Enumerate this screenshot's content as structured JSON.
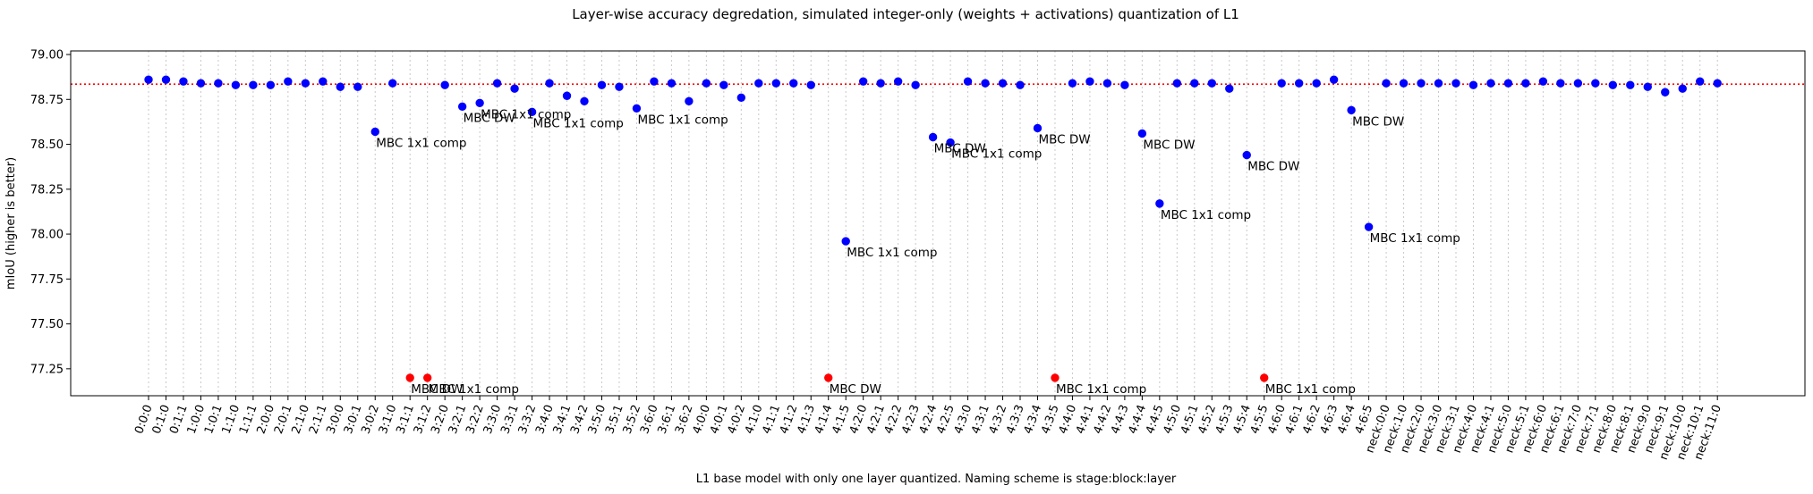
{
  "chart_data": {
    "type": "scatter",
    "title": "Layer-wise accuracy degredation, simulated integer-only (weights + activations) quantization of L1",
    "xlabel": "L1 base model with only one layer quantized. Naming scheme is stage:block:layer",
    "ylabel": "mIoU (higher is better)",
    "ylim": [
      77.1,
      79.02
    ],
    "yticks": [
      "77.25",
      "77.50",
      "77.75",
      "78.00",
      "78.25",
      "78.50",
      "78.75",
      "79.00"
    ],
    "reference_line": {
      "value": 78.835,
      "style": "dotted",
      "color": "#ff0000"
    },
    "grid": "vertical dotted at each category",
    "categories": [
      "0:0:0",
      "0:1:0",
      "0:1:1",
      "1:0:0",
      "1:0:1",
      "1:1:0",
      "1:1:1",
      "2:0:0",
      "2:0:1",
      "2:1:0",
      "2:1:1",
      "3:0:0",
      "3:0:1",
      "3:0:2",
      "3:1:0",
      "3:1:1",
      "3:1:2",
      "3:2:0",
      "3:2:1",
      "3:2:2",
      "3:3:0",
      "3:3:1",
      "3:3:2",
      "3:4:0",
      "3:4:1",
      "3:4:2",
      "3:5:0",
      "3:5:1",
      "3:5:2",
      "3:6:0",
      "3:6:1",
      "3:6:2",
      "4:0:0",
      "4:0:1",
      "4:0:2",
      "4:1:0",
      "4:1:1",
      "4:1:2",
      "4:1:3",
      "4:1:4",
      "4:1:5",
      "4:2:0",
      "4:2:1",
      "4:2:2",
      "4:2:3",
      "4:2:4",
      "4:2:5",
      "4:3:0",
      "4:3:1",
      "4:3:2",
      "4:3:3",
      "4:3:4",
      "4:3:5",
      "4:4:0",
      "4:4:1",
      "4:4:2",
      "4:4:3",
      "4:4:4",
      "4:4:5",
      "4:5:0",
      "4:5:1",
      "4:5:2",
      "4:5:3",
      "4:5:4",
      "4:5:5",
      "4:6:0",
      "4:6:1",
      "4:6:2",
      "4:6:3",
      "4:6:4",
      "4:6:5",
      "neck:0:0",
      "neck:1:0",
      "neck:2:0",
      "neck:3:0",
      "neck:3:1",
      "neck:4:0",
      "neck:4:1",
      "neck:5:0",
      "neck:5:1",
      "neck:6:0",
      "neck:6:1",
      "neck:7:0",
      "neck:7:1",
      "neck:8:0",
      "neck:8:1",
      "neck:9:0",
      "neck:9:1",
      "neck:10:0",
      "neck:10:1",
      "neck:11:0"
    ],
    "values": [
      78.86,
      78.86,
      78.85,
      78.84,
      78.84,
      78.83,
      78.83,
      78.83,
      78.85,
      78.84,
      78.85,
      78.82,
      78.82,
      78.57,
      78.84,
      77.2,
      77.2,
      78.83,
      78.71,
      78.73,
      78.84,
      78.81,
      78.68,
      78.84,
      78.77,
      78.74,
      78.83,
      78.82,
      78.7,
      78.85,
      78.84,
      78.74,
      78.84,
      78.83,
      78.76,
      78.84,
      78.84,
      78.84,
      78.83,
      77.2,
      77.96,
      78.85,
      78.84,
      78.85,
      78.83,
      78.54,
      78.51,
      78.85,
      78.84,
      78.84,
      78.83,
      78.59,
      77.2,
      78.84,
      78.85,
      78.84,
      78.83,
      78.56,
      78.17,
      78.84,
      78.84,
      78.84,
      78.81,
      78.44,
      77.2,
      78.84,
      78.84,
      78.84,
      78.86,
      78.69,
      78.04,
      78.84,
      78.84,
      78.84,
      78.84,
      78.84,
      78.83,
      78.84,
      78.84,
      78.84,
      78.85,
      78.84,
      78.84,
      78.84,
      78.83,
      78.83,
      78.82,
      78.79,
      78.81,
      78.85,
      78.84
    ],
    "point_colors": {
      "normal": "#0000ff",
      "clipped": "#ff0000"
    },
    "clipped_indices": [
      15,
      16,
      39,
      52,
      64
    ],
    "annotations": [
      {
        "index": 13,
        "text": "MBC 1x1 comp"
      },
      {
        "index": 15,
        "text": "MBC DW"
      },
      {
        "index": 16,
        "text": "MBC 1x1 comp"
      },
      {
        "index": 18,
        "text": "MBC DW"
      },
      {
        "index": 19,
        "text": "MBC 1x1 comp"
      },
      {
        "index": 22,
        "text": "MBC 1x1 comp"
      },
      {
        "index": 28,
        "text": "MBC 1x1 comp"
      },
      {
        "index": 39,
        "text": "MBC DW"
      },
      {
        "index": 40,
        "text": "MBC 1x1 comp"
      },
      {
        "index": 45,
        "text": "MBC DW"
      },
      {
        "index": 46,
        "text": "MBC 1x1 comp"
      },
      {
        "index": 51,
        "text": "MBC DW"
      },
      {
        "index": 52,
        "text": "MBC 1x1 comp"
      },
      {
        "index": 57,
        "text": "MBC DW"
      },
      {
        "index": 58,
        "text": "MBC 1x1 comp"
      },
      {
        "index": 63,
        "text": "MBC DW"
      },
      {
        "index": 64,
        "text": "MBC 1x1 comp"
      },
      {
        "index": 69,
        "text": "MBC DW"
      },
      {
        "index": 70,
        "text": "MBC 1x1 comp"
      }
    ]
  }
}
